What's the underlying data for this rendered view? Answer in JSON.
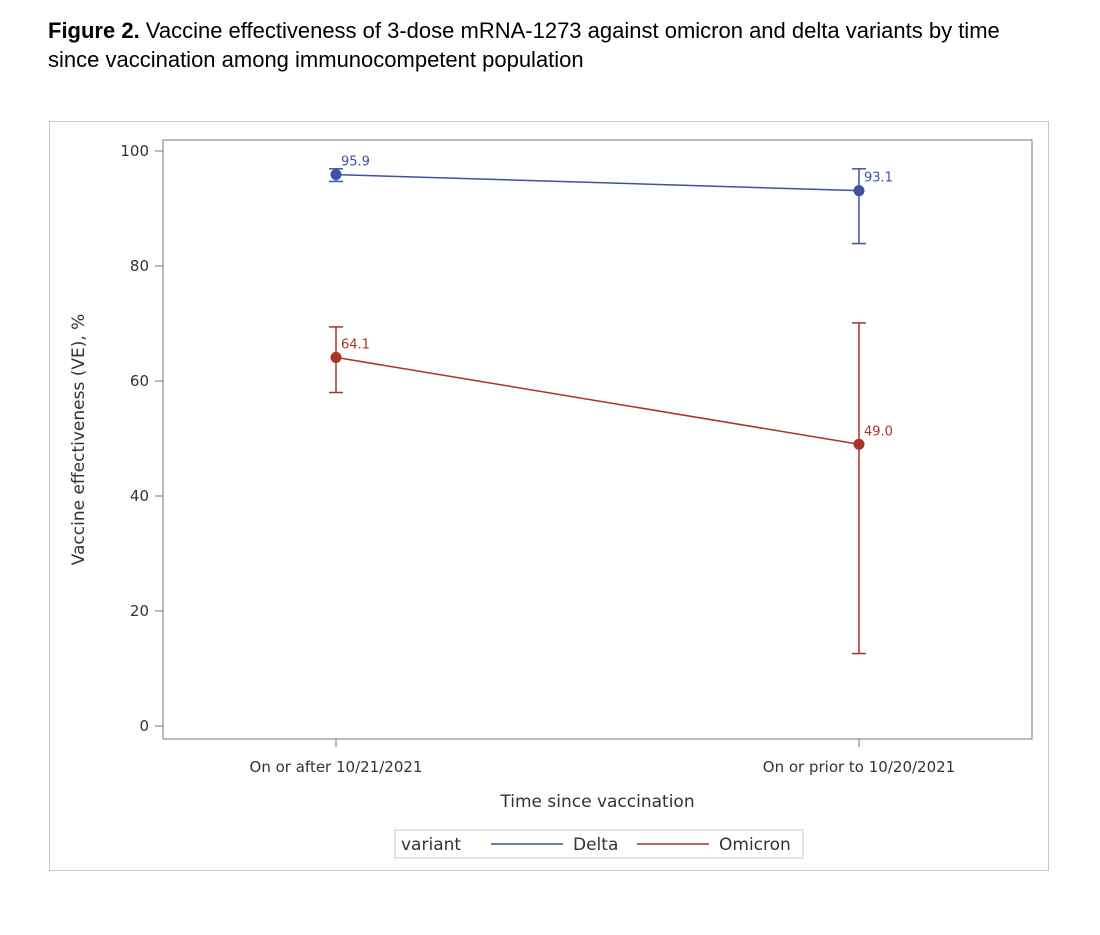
{
  "caption": {
    "figure_label": "Figure 2.",
    "text": " Vaccine effectiveness of 3-dose mRNA-1273 against omicron and delta variants by time since vaccination among immunocompetent population"
  },
  "colors": {
    "delta": "#3f51a0",
    "omicron": "#a83428",
    "axis": "#777777"
  },
  "chart_data": {
    "type": "line",
    "title": "Figure 2. Vaccine effectiveness of 3-dose mRNA-1273 against omicron and delta variants by time since vaccination among immunocompetent population",
    "xlabel": "Time since vaccination",
    "ylabel": "Vaccine effectiveness (VE), %",
    "categories": [
      "On or after 10/21/2021",
      "On or prior to 10/20/2021"
    ],
    "ylim": [
      0,
      100
    ],
    "yticks": [
      0,
      20,
      40,
      60,
      80,
      100
    ],
    "grid": false,
    "legend": {
      "title": "variant",
      "position": "bottom"
    },
    "series": [
      {
        "name": "Delta",
        "values": [
          95.9,
          93.1
        ],
        "labels": [
          "95.9",
          "93.1"
        ],
        "ci_lower": [
          94.7,
          83.9
        ],
        "ci_upper": [
          96.9,
          96.9
        ]
      },
      {
        "name": "Omicron",
        "values": [
          64.1,
          49.0
        ],
        "labels": [
          "64.1",
          "49.0"
        ],
        "ci_lower": [
          58.0,
          12.6
        ],
        "ci_upper": [
          69.4,
          70.1
        ]
      }
    ]
  }
}
